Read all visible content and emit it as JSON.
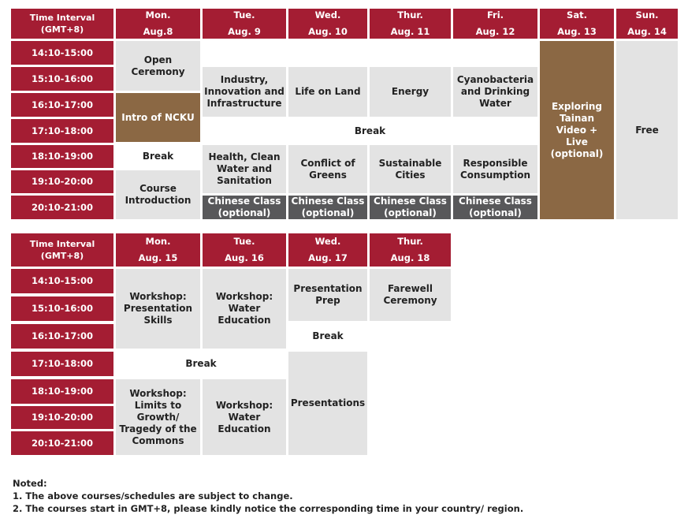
{
  "week1": {
    "time_header": "Time Interval (GMT+8)",
    "days": [
      {
        "day": "Mon.",
        "date": "Aug.8"
      },
      {
        "day": "Tue.",
        "date": "Aug. 9"
      },
      {
        "day": "Wed.",
        "date": "Aug. 10"
      },
      {
        "day": "Thur.",
        "date": "Aug. 11"
      },
      {
        "day": "Fri.",
        "date": "Aug. 12"
      },
      {
        "day": "Sat.",
        "date": "Aug. 13"
      },
      {
        "day": "Sun.",
        "date": "Aug. 14"
      }
    ],
    "times": [
      "14:10-15:00",
      "15:10-16:00",
      "16:10-17:00",
      "17:10-18:00",
      "18:10-19:00",
      "19:10-20:00",
      "20:10-21:00"
    ],
    "events": {
      "open_ceremony": "Open Ceremony",
      "intro_ncku": "Intro of NCKU",
      "mon_break": "Break",
      "course_intro": "Course Introduction",
      "industry": "Industry, Innovation and Infrastructure",
      "life_on_land": "Life on Land",
      "energy": "Energy",
      "cyanobacteria": "Cyanobacteria and Drinking Water",
      "break_wide": "Break",
      "health": "Health, Clean Water and Sanitation",
      "conflict": "Conflict of Greens",
      "sustainable": "Sustainable Cities",
      "responsible": "Responsible Consumption",
      "chinese_class": "Chinese Class (optional)",
      "exploring": "Exploring Tainan Video + Live (optional)",
      "free": "Free"
    }
  },
  "week2": {
    "time_header": "Time Interval (GMT+8)",
    "days": [
      {
        "day": "Mon.",
        "date": "Aug. 15"
      },
      {
        "day": "Tue.",
        "date": "Aug. 16"
      },
      {
        "day": "Wed.",
        "date": "Aug. 17"
      },
      {
        "day": "Thur.",
        "date": "Aug. 18"
      }
    ],
    "times": [
      "14:10-15:00",
      "15:10-16:00",
      "16:10-17:00",
      "17:10-18:00",
      "18:10-19:00",
      "19:10-20:00",
      "20:10-21:00"
    ],
    "events": {
      "workshop_presentation": "Workshop: Presentation Skills",
      "workshop_water_1": "Workshop: Water Education",
      "presentation_prep": "Presentation Prep",
      "farewell": "Farewell Ceremony",
      "wed_break": "Break",
      "break_wide": "Break",
      "workshop_limits": "Workshop: Limits to Growth/ Tragedy of the Commons",
      "workshop_water_2": "Workshop: Water Education",
      "presentations": "Presentations"
    }
  },
  "notes": {
    "title": "Noted:",
    "items": [
      "1.  The above courses/schedules are subject to change.",
      "2. The courses start in GMT+8, please kindly notice the corresponding time in your country/ region."
    ]
  }
}
